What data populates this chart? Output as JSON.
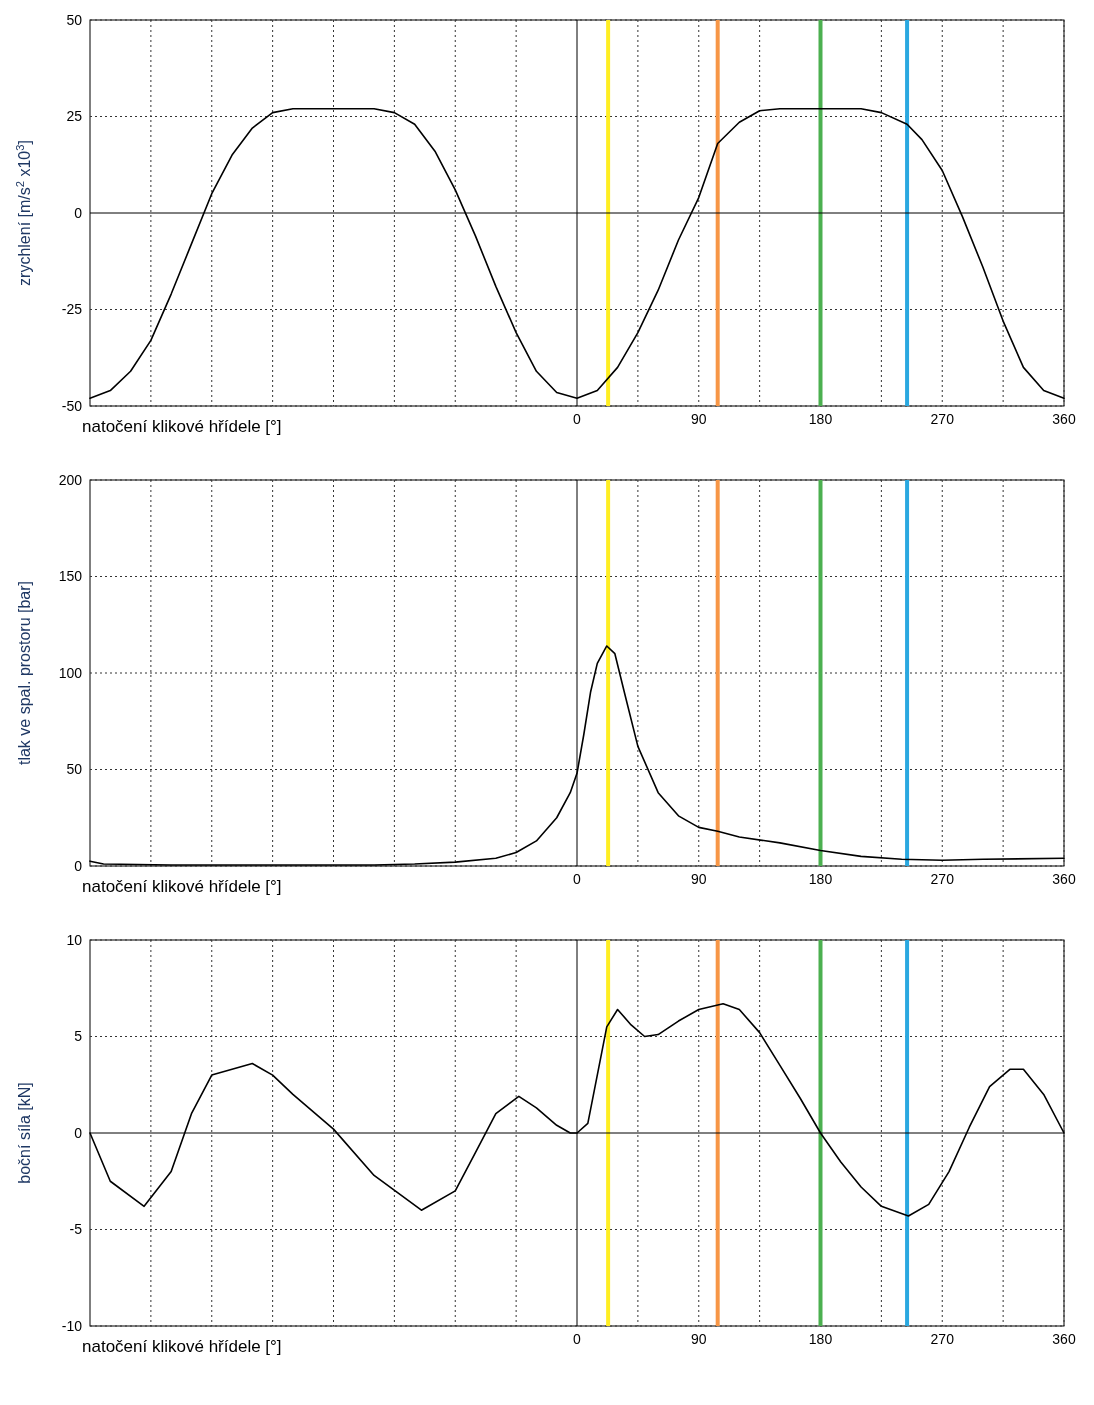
{
  "chart_data": [
    {
      "type": "line",
      "ylabel": "zrychlení [m/s$^{2}$ x10$^{3}$]",
      "xlabel": "natočení klikové hřídele [°]",
      "color": "#000000",
      "grid": true,
      "tick_labels": "xy",
      "xlim": [
        -360,
        360
      ],
      "ylim": [
        -50,
        50
      ],
      "yticks": [
        -50,
        -25,
        0,
        25,
        50
      ],
      "xticks": [
        {
          "value": -315,
          "label": null
        },
        {
          "value": -270,
          "label": null
        },
        {
          "value": -225,
          "label": null
        },
        {
          "value": -180,
          "label": null
        },
        {
          "value": -135,
          "label": null
        },
        {
          "value": -90,
          "label": null
        },
        {
          "value": -45,
          "label": null
        },
        0,
        {
          "value": 45,
          "label": null
        },
        90,
        {
          "value": 135,
          "label": null
        },
        180,
        {
          "value": 225,
          "label": null
        },
        270,
        {
          "value": 315,
          "label": null
        },
        360
      ],
      "x": [
        -360,
        -345,
        -330,
        -315,
        -300,
        -285,
        -270,
        -255,
        -240,
        -225,
        -210,
        -180,
        -150,
        -135,
        -120,
        -105,
        -90,
        -75,
        -60,
        -45,
        -30,
        -15,
        0,
        15,
        30,
        45,
        60,
        75,
        90,
        104,
        120,
        135,
        150,
        180,
        210,
        225,
        244,
        255,
        270,
        285,
        300,
        315,
        330,
        345,
        360
      ],
      "values": [
        -48,
        -46,
        -41,
        -33,
        -21,
        -8,
        5,
        15,
        22,
        26,
        27,
        27,
        27,
        26,
        23,
        16,
        6,
        -6,
        -19,
        -31,
        -41,
        -46.5,
        -48,
        -46,
        -40,
        -31,
        -20,
        -7,
        4,
        18,
        23.5,
        26.5,
        27,
        27,
        27,
        26,
        23,
        19,
        11,
        -1,
        -14,
        -28,
        -40,
        -46,
        -48
      ],
      "ref_lines": [
        {
          "axis": "x",
          "value": 23,
          "color": "#ffee22"
        },
        {
          "axis": "x",
          "value": 104,
          "color": "#f79646"
        },
        {
          "axis": "x",
          "value": 180,
          "color": "#4cb050"
        },
        {
          "axis": "x",
          "value": 244,
          "color": "#2aa8e0"
        }
      ]
    },
    {
      "type": "line",
      "ylabel": "tlak ve spal. prostoru [bar]",
      "xlabel": "natočení klikové hřídele [°]",
      "color": "#000000",
      "grid": true,
      "xlim": [
        -360,
        360
      ],
      "ylim": [
        0,
        200
      ],
      "yticks": [
        0,
        50,
        100,
        150,
        200
      ],
      "xticks": [
        {
          "value": -315,
          "label": null
        },
        {
          "value": -270,
          "label": null
        },
        {
          "value": -225,
          "label": null
        },
        {
          "value": -180,
          "label": null
        },
        {
          "value": -135,
          "label": null
        },
        {
          "value": -90,
          "label": null
        },
        {
          "value": -45,
          "label": null
        },
        0,
        {
          "value": 45,
          "label": null
        },
        90,
        {
          "value": 135,
          "label": null
        },
        180,
        {
          "value": 225,
          "label": null
        },
        270,
        {
          "value": 315,
          "label": null
        },
        360
      ],
      "x": [
        -360,
        -350,
        -300,
        -200,
        -150,
        -120,
        -90,
        -60,
        -45,
        -30,
        -15,
        -5,
        0,
        5,
        10,
        15,
        22,
        28,
        35,
        45,
        60,
        75,
        90,
        104,
        120,
        150,
        180,
        210,
        240,
        270,
        300,
        360
      ],
      "values": [
        2.5,
        1,
        0.5,
        0.5,
        0.5,
        1,
        2,
        4,
        7,
        13,
        25,
        38,
        48,
        68,
        90,
        105,
        114,
        110,
        90,
        62,
        38,
        26,
        20,
        18,
        15,
        12,
        8,
        5,
        3.5,
        3,
        3.5,
        4
      ],
      "ref_lines": [
        {
          "axis": "x",
          "value": 0,
          "color": "#000000"
        },
        {
          "axis": "x",
          "value": 23,
          "color": "#ffee22"
        },
        {
          "axis": "x",
          "value": 104,
          "color": "#f79646"
        },
        {
          "axis": "x",
          "value": 180,
          "color": "#4cb050"
        },
        {
          "axis": "x",
          "value": 244,
          "color": "#2aa8e0"
        }
      ]
    },
    {
      "type": "line",
      "ylabel": "boční síla [kN]",
      "xlabel": "natočení klikové hřídele [°]",
      "color": "#000000",
      "grid": true,
      "xlim": [
        -360,
        360
      ],
      "ylim": [
        -10,
        10
      ],
      "yticks": [
        -10,
        -5,
        0,
        5,
        10
      ],
      "xticks": [
        {
          "value": -315,
          "label": null
        },
        {
          "value": -270,
          "label": null
        },
        {
          "value": -225,
          "label": null
        },
        {
          "value": -180,
          "label": null
        },
        {
          "value": -135,
          "label": null
        },
        {
          "value": -90,
          "label": null
        },
        {
          "value": -45,
          "label": null
        },
        0,
        {
          "value": 45,
          "label": null
        },
        90,
        {
          "value": 135,
          "label": null
        },
        180,
        {
          "value": 225,
          "label": null
        },
        270,
        {
          "value": 315,
          "label": null
        },
        360
      ],
      "x": [
        -360,
        -345,
        -320,
        -300,
        -285,
        -270,
        -240,
        -225,
        -210,
        -180,
        -150,
        -115,
        -90,
        -75,
        -60,
        -43,
        -30,
        -15,
        -5,
        0,
        8,
        15,
        22,
        30,
        40,
        50,
        60,
        75,
        90,
        108,
        120,
        135,
        150,
        165,
        180,
        195,
        210,
        225,
        245,
        260,
        275,
        290,
        305,
        320,
        330,
        345,
        360
      ],
      "values": [
        0,
        -2.5,
        -3.8,
        -2,
        1,
        3,
        3.6,
        3,
        2,
        0.2,
        -2.2,
        -4,
        -3,
        -1,
        1,
        1.9,
        1.3,
        0.4,
        0,
        0,
        0.5,
        3,
        5.5,
        6.4,
        5.6,
        5,
        5.1,
        5.8,
        6.4,
        6.7,
        6.4,
        5.2,
        3.5,
        1.8,
        0,
        -1.5,
        -2.8,
        -3.8,
        -4.3,
        -3.7,
        -2,
        0.3,
        2.4,
        3.3,
        3.3,
        2,
        0
      ],
      "ref_lines": [
        {
          "axis": "x",
          "value": 23,
          "color": "#ffee22"
        },
        {
          "axis": "x",
          "value": 104,
          "color": "#f79646"
        },
        {
          "axis": "x",
          "value": 180,
          "color": "#4cb050"
        },
        {
          "axis": "x",
          "value": 244,
          "color": "#2aa8e0"
        }
      ]
    }
  ]
}
